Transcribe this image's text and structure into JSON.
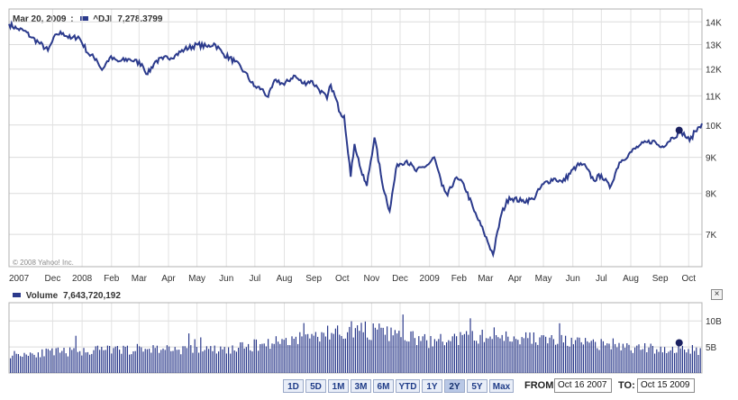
{
  "header": {
    "date": "Mar 20, 2009",
    "colon": ":",
    "symbol": "^DJI",
    "value": "7,278.3799"
  },
  "volume_header": {
    "label": "Volume",
    "value": "7,643,720,192"
  },
  "watermark": "© 2008 Yahoo! Inc.",
  "close_glyph": "×",
  "colors": {
    "series": "#2b3a8c",
    "grid": "#d6d6d6",
    "border": "#b0b0b0"
  },
  "ranges": [
    {
      "label": "1D",
      "active": false
    },
    {
      "label": "5D",
      "active": false
    },
    {
      "label": "1M",
      "active": false
    },
    {
      "label": "3M",
      "active": false
    },
    {
      "label": "6M",
      "active": false
    },
    {
      "label": "YTD",
      "active": false
    },
    {
      "label": "1Y",
      "active": false
    },
    {
      "label": "2Y",
      "active": true
    },
    {
      "label": "5Y",
      "active": false
    },
    {
      "label": "Max",
      "active": false
    }
  ],
  "from_label": "FROM:",
  "from_value": "Oct 16 2007",
  "to_label": "TO:",
  "to_value": "Oct 15 2009",
  "chart_data": [
    {
      "type": "line",
      "title": "^DJI",
      "y_scale": "log",
      "ylim": [
        6300,
        14600
      ],
      "y_ticks": [
        7000,
        8000,
        9000,
        10000,
        11000,
        12000,
        13000,
        14000
      ],
      "y_tick_labels": [
        "7K",
        "8K",
        "9K",
        "10K",
        "11K",
        "12K",
        "13K",
        "14K"
      ],
      "x_range": [
        "2007-10-16",
        "2009-10-15"
      ],
      "x_ticks": [
        {
          "date": "2007-10-16",
          "label": "2007"
        },
        {
          "date": "2007-12-01",
          "label": "Dec"
        },
        {
          "date": "2008-01-01",
          "label": "2008"
        },
        {
          "date": "2008-02-01",
          "label": "Feb"
        },
        {
          "date": "2008-03-01",
          "label": "Mar"
        },
        {
          "date": "2008-04-01",
          "label": "Apr"
        },
        {
          "date": "2008-05-01",
          "label": "May"
        },
        {
          "date": "2008-06-01",
          "label": "Jun"
        },
        {
          "date": "2008-07-01",
          "label": "Jul"
        },
        {
          "date": "2008-08-01",
          "label": "Aug"
        },
        {
          "date": "2008-09-01",
          "label": "Sep"
        },
        {
          "date": "2008-10-01",
          "label": "Oct"
        },
        {
          "date": "2008-11-01",
          "label": "Nov"
        },
        {
          "date": "2008-12-01",
          "label": "Dec"
        },
        {
          "date": "2009-01-01",
          "label": "2009"
        },
        {
          "date": "2009-02-01",
          "label": "Feb"
        },
        {
          "date": "2009-03-01",
          "label": "Mar"
        },
        {
          "date": "2009-04-01",
          "label": "Apr"
        },
        {
          "date": "2009-05-01",
          "label": "May"
        },
        {
          "date": "2009-06-01",
          "label": "Jun"
        },
        {
          "date": "2009-07-01",
          "label": "Jul"
        },
        {
          "date": "2009-08-01",
          "label": "Aug"
        },
        {
          "date": "2009-09-01",
          "label": "Sep"
        },
        {
          "date": "2009-10-01",
          "label": "Oct"
        }
      ],
      "series": [
        {
          "points": [
            [
              "2007-10-16",
              13900
            ],
            [
              "2007-10-24",
              13700
            ],
            [
              "2007-11-01",
              13600
            ],
            [
              "2007-11-09",
              13300
            ],
            [
              "2007-11-16",
              13100
            ],
            [
              "2007-11-26",
              12750
            ],
            [
              "2007-12-05",
              13450
            ],
            [
              "2007-12-12",
              13500
            ],
            [
              "2007-12-20",
              13250
            ],
            [
              "2007-12-28",
              13350
            ],
            [
              "2008-01-08",
              12600
            ],
            [
              "2008-01-16",
              12400
            ],
            [
              "2008-01-22",
              11970
            ],
            [
              "2008-01-30",
              12450
            ],
            [
              "2008-02-08",
              12300
            ],
            [
              "2008-02-20",
              12400
            ],
            [
              "2008-03-04",
              12200
            ],
            [
              "2008-03-10",
              11800
            ],
            [
              "2008-03-18",
              12300
            ],
            [
              "2008-03-26",
              12400
            ],
            [
              "2008-04-08",
              12550
            ],
            [
              "2008-04-18",
              12800
            ],
            [
              "2008-05-02",
              13000
            ],
            [
              "2008-05-12",
              12900
            ],
            [
              "2008-05-19",
              13050
            ],
            [
              "2008-05-29",
              12600
            ],
            [
              "2008-06-10",
              12300
            ],
            [
              "2008-06-20",
              11900
            ],
            [
              "2008-06-30",
              11350
            ],
            [
              "2008-07-08",
              11250
            ],
            [
              "2008-07-15",
              10960
            ],
            [
              "2008-07-23",
              11600
            ],
            [
              "2008-08-01",
              11400
            ],
            [
              "2008-08-11",
              11750
            ],
            [
              "2008-08-21",
              11450
            ],
            [
              "2008-08-29",
              11550
            ],
            [
              "2008-09-05",
              11300
            ],
            [
              "2008-09-15",
              10900
            ],
            [
              "2008-09-19",
              11400
            ],
            [
              "2008-09-29",
              10400
            ],
            [
              "2008-10-03",
              10300
            ],
            [
              "2008-10-10",
              8450
            ],
            [
              "2008-10-14",
              9400
            ],
            [
              "2008-10-22",
              8500
            ],
            [
              "2008-10-27",
              8200
            ],
            [
              "2008-11-04",
              9600
            ],
            [
              "2008-11-12",
              8300
            ],
            [
              "2008-11-20",
              7550
            ],
            [
              "2008-11-28",
              8800
            ],
            [
              "2008-12-08",
              8900
            ],
            [
              "2008-12-18",
              8600
            ],
            [
              "2008-12-31",
              8800
            ],
            [
              "2009-01-06",
              9000
            ],
            [
              "2009-01-14",
              8200
            ],
            [
              "2009-01-20",
              7950
            ],
            [
              "2009-01-28",
              8400
            ],
            [
              "2009-02-06",
              8250
            ],
            [
              "2009-02-17",
              7550
            ],
            [
              "2009-02-27",
              7060
            ],
            [
              "2009-03-09",
              6550
            ],
            [
              "2009-03-18",
              7500
            ],
            [
              "2009-03-26",
              7900
            ],
            [
              "2009-04-08",
              7800
            ],
            [
              "2009-04-20",
              7850
            ],
            [
              "2009-05-01",
              8250
            ],
            [
              "2009-05-12",
              8400
            ],
            [
              "2009-05-21",
              8300
            ],
            [
              "2009-06-05",
              8750
            ],
            [
              "2009-06-12",
              8800
            ],
            [
              "2009-06-23",
              8350
            ],
            [
              "2009-07-01",
              8500
            ],
            [
              "2009-07-10",
              8150
            ],
            [
              "2009-07-20",
              8850
            ],
            [
              "2009-07-30",
              9100
            ],
            [
              "2009-08-10",
              9350
            ],
            [
              "2009-08-24",
              9500
            ],
            [
              "2009-09-02",
              9300
            ],
            [
              "2009-09-14",
              9600
            ],
            [
              "2009-09-23",
              9800
            ],
            [
              "2009-10-02",
              9500
            ],
            [
              "2009-10-08",
              9800
            ],
            [
              "2009-10-15",
              10050
            ]
          ]
        }
      ],
      "marker": {
        "date": "2009-09-21",
        "value": 9830
      }
    },
    {
      "type": "bar",
      "title": "Volume",
      "y_ticks": [
        5000000000,
        10000000000
      ],
      "y_tick_labels": [
        "5B",
        "10B"
      ],
      "ylim": [
        0,
        13500000000
      ],
      "x_range": [
        "2007-10-16",
        "2009-10-15"
      ],
      "volume_profile": [
        [
          "2007-10-16",
          3.6
        ],
        [
          "2008-01-01",
          4.2
        ],
        [
          "2008-03-15",
          4.7
        ],
        [
          "2008-06-01",
          4.4
        ],
        [
          "2008-07-15",
          5.8
        ],
        [
          "2008-09-15",
          7.6
        ],
        [
          "2008-10-15",
          8.5
        ],
        [
          "2008-11-20",
          7.5
        ],
        [
          "2009-01-01",
          6.0
        ],
        [
          "2009-03-10",
          7.3
        ],
        [
          "2009-05-15",
          6.2
        ],
        [
          "2009-08-01",
          4.8
        ],
        [
          "2009-10-15",
          4.4
        ]
      ],
      "volume_unit": "billion shares",
      "marker": {
        "date": "2009-09-21",
        "value": 5800000000
      }
    }
  ]
}
